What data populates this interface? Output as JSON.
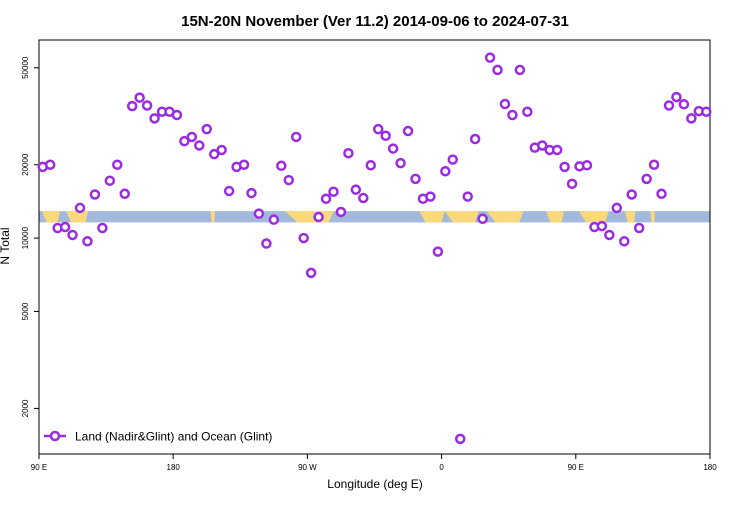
{
  "chart_data": {
    "type": "scatter",
    "title": "15N-20N November (Ver 11.2)   2014-09-06 to 2024-07-31",
    "xlabel": "Longitude (deg E)",
    "ylabel": "N Total",
    "xscale": "linear",
    "yscale": "log",
    "xlim": [
      0,
      450
    ],
    "ylim": [
      1300,
      65000
    ],
    "xticks": [
      {
        "value": 0,
        "label": "90 E"
      },
      {
        "value": 90,
        "label": "180"
      },
      {
        "value": 180,
        "label": "90 W"
      },
      {
        "value": 270,
        "label": "0"
      },
      {
        "value": 360,
        "label": "90 E"
      },
      {
        "value": 450,
        "label": "180"
      }
    ],
    "yticks": [
      {
        "value": 2000,
        "label": "2000"
      },
      {
        "value": 5000,
        "label": "5000"
      },
      {
        "value": 10000,
        "label": "10000"
      },
      {
        "value": 20000,
        "label": "20000"
      },
      {
        "value": 50000,
        "label": "50000"
      }
    ],
    "legend": {
      "position": "bottom-left",
      "label": "Land (Nadir&Glint) and Ocean (Glint)"
    },
    "colors": {
      "series": "#9a2be2",
      "ocean": "#a3b9db",
      "land": "#fad97d"
    },
    "series": [
      {
        "name": "Land (Nadir&Glint) and Ocean (Glint)",
        "x": [
          2.5,
          7.5,
          12.5,
          17.5,
          22.5,
          27.5,
          32.5,
          37.5,
          42.5,
          47.5,
          52.5,
          57.5,
          62.5,
          67.5,
          72.5,
          77.5,
          82.5,
          87.5,
          92.5,
          97.5,
          102.5,
          107.5,
          112.5,
          117.5,
          122.5,
          127.5,
          132.5,
          137.5,
          142.5,
          147.5,
          152.5,
          157.5,
          162.5,
          167.5,
          172.5,
          177.5,
          182.5,
          187.5,
          192.5,
          197.5,
          202.5,
          207.5,
          212.5,
          217.5,
          222.5,
          227.5,
          232.5,
          237.5,
          242.5,
          247.5,
          252.5,
          257.5,
          262.5,
          267.5,
          272.5,
          277.5,
          282.5,
          287.5,
          292.5,
          297.5,
          302.5,
          307.5,
          312.5,
          317.5,
          322.5,
          327.5,
          332.5,
          337.5,
          342.5,
          347.5,
          352.5,
          357.5,
          362.5,
          367.5,
          372.5,
          377.5,
          382.5,
          387.5,
          392.5,
          397.5,
          402.5,
          407.5,
          412.5,
          417.5,
          422.5,
          427.5,
          432.5,
          437.5,
          442.5,
          447.5
        ],
        "values": [
          19600,
          20000,
          11000,
          11100,
          10300,
          13300,
          9700,
          15100,
          11000,
          17200,
          20000,
          15200,
          34800,
          37700,
          35000,
          31000,
          33000,
          33000,
          32000,
          25000,
          26000,
          24000,
          28000,
          22100,
          23000,
          15600,
          19600,
          20000,
          15300,
          12600,
          9500,
          11900,
          19800,
          17300,
          26000,
          10000,
          7200,
          12200,
          14500,
          15500,
          12800,
          22300,
          15800,
          14600,
          19900,
          28000,
          26300,
          23300,
          20300,
          27500,
          17500,
          14500,
          14800,
          8800,
          18800,
          21000,
          1500,
          14800,
          25500,
          12000,
          55000,
          49000,
          35500,
          32000,
          49000,
          33000,
          23500,
          24000,
          23000,
          23000,
          19600,
          16700,
          19700,
          19900,
          11100,
          11200,
          10300,
          13300,
          9700,
          15100,
          11000,
          17500,
          20000,
          15200,
          35000,
          37900,
          35400,
          31000,
          33200,
          33000
        ]
      }
    ],
    "map_strip": {
      "y_low": 11600,
      "y_high": 12900
    }
  }
}
